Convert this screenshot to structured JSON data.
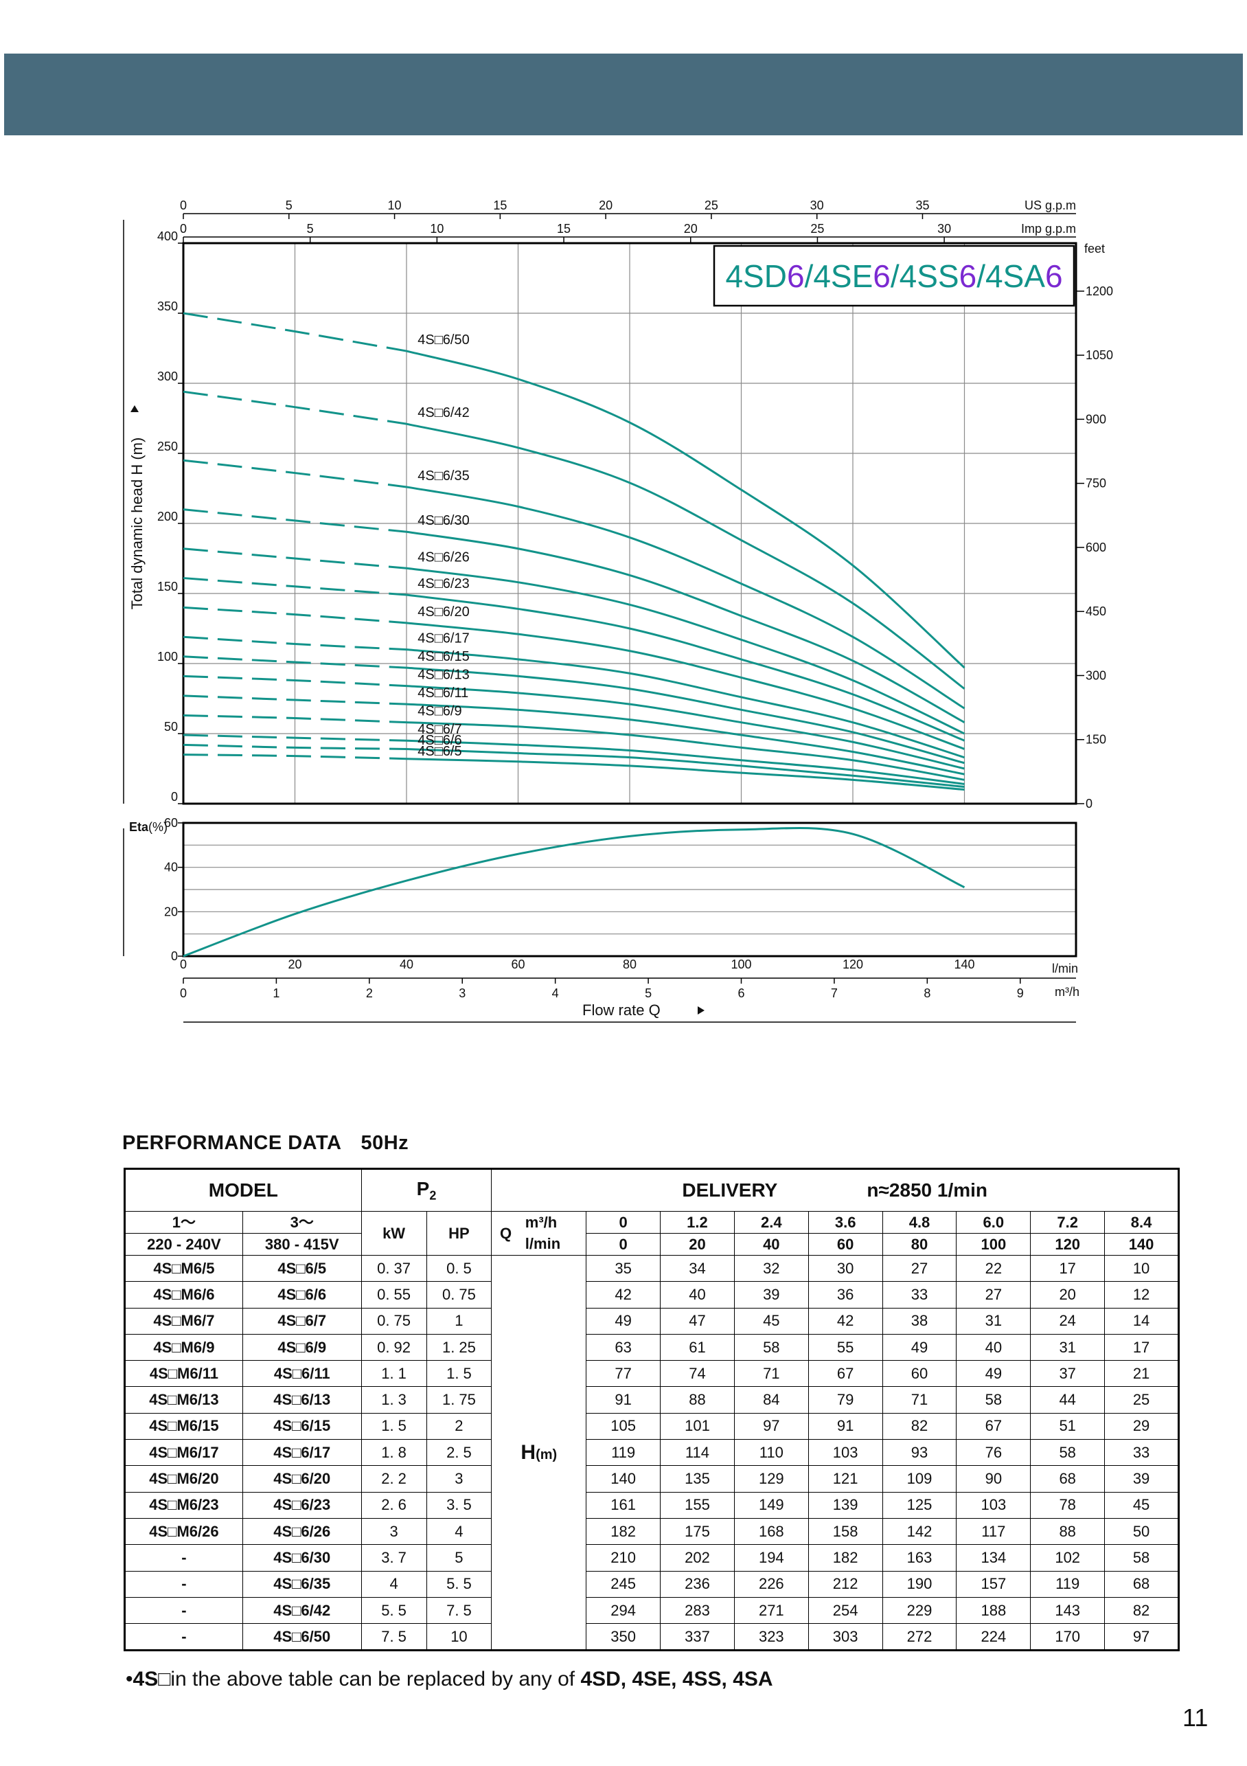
{
  "chart_data": {
    "type": "line",
    "title": "4SD6/4SE6/4SS6/4SA6",
    "title_parts": [
      {
        "t": "4SD",
        "c": "#12938a"
      },
      {
        "t": "6",
        "c": "#7b29d1"
      },
      {
        "t": "/",
        "c": "#12938a"
      },
      {
        "t": "4SE",
        "c": "#12938a"
      },
      {
        "t": "6",
        "c": "#7b29d1"
      },
      {
        "t": "/",
        "c": "#12938a"
      },
      {
        "t": "4SS",
        "c": "#12938a"
      },
      {
        "t": "6",
        "c": "#7b29d1"
      },
      {
        "t": "/",
        "c": "#12938a"
      },
      {
        "t": "4SA",
        "c": "#12938a"
      },
      {
        "t": "6",
        "c": "#7b29d1"
      }
    ],
    "curve_color": "#12938a",
    "ylabel": "Total dynamic head H (m)",
    "y2_label": "feet",
    "x_label": "Flow rate Q",
    "xlim": [
      0,
      160
    ],
    "ylim": [
      0,
      400
    ],
    "y_ticks": [
      0,
      50,
      100,
      150,
      200,
      250,
      300,
      350,
      400
    ],
    "y_feet_ticks": [
      0,
      150,
      300,
      450,
      600,
      750,
      900,
      1050,
      1200
    ],
    "usgpm_label": "US g.p.m",
    "usgpm_ticks": [
      0,
      5,
      10,
      15,
      20,
      25,
      30,
      35
    ],
    "impgpm_label": "Imp g.p.m",
    "impgpm_ticks": [
      0,
      5,
      10,
      15,
      20,
      25,
      30
    ],
    "lmin_label": "l/min",
    "lmin_ticks": [
      0,
      20,
      40,
      60,
      80,
      100,
      120,
      140
    ],
    "m3h_label": "m³/h",
    "m3h_ticks": [
      0,
      1,
      2,
      3,
      4,
      5,
      6,
      7,
      8,
      9
    ],
    "dashed_until_lmin": 40,
    "curve_x": [
      0,
      20,
      40,
      60,
      80,
      100,
      120,
      140
    ],
    "series": [
      {
        "name": "4S□6/50",
        "values": [
          350,
          337,
          323,
          303,
          272,
          224,
          170,
          97
        ]
      },
      {
        "name": "4S□6/42",
        "values": [
          294,
          283,
          271,
          254,
          229,
          188,
          143,
          82
        ]
      },
      {
        "name": "4S□6/35",
        "values": [
          245,
          236,
          226,
          212,
          190,
          157,
          119,
          68
        ]
      },
      {
        "name": "4S□6/30",
        "values": [
          210,
          202,
          194,
          182,
          163,
          134,
          102,
          58
        ]
      },
      {
        "name": "4S□6/26",
        "values": [
          182,
          175,
          168,
          158,
          142,
          117,
          88,
          50
        ]
      },
      {
        "name": "4S□6/23",
        "values": [
          161,
          155,
          149,
          139,
          125,
          103,
          78,
          45
        ]
      },
      {
        "name": "4S□6/20",
        "values": [
          140,
          135,
          129,
          121,
          109,
          90,
          68,
          39
        ]
      },
      {
        "name": "4S□6/17",
        "values": [
          119,
          114,
          110,
          103,
          93,
          76,
          58,
          33
        ]
      },
      {
        "name": "4S□6/15",
        "values": [
          105,
          101,
          97,
          91,
          82,
          67,
          51,
          29
        ]
      },
      {
        "name": "4S□6/13",
        "values": [
          91,
          88,
          84,
          79,
          71,
          58,
          44,
          25
        ]
      },
      {
        "name": "4S□6/11",
        "values": [
          77,
          74,
          71,
          67,
          60,
          49,
          37,
          21
        ]
      },
      {
        "name": "4S□6/9",
        "values": [
          63,
          61,
          58,
          55,
          49,
          40,
          31,
          17
        ]
      },
      {
        "name": "4S□6/7",
        "values": [
          49,
          47,
          45,
          42,
          38,
          31,
          24,
          14
        ]
      },
      {
        "name": "4S□6/6",
        "values": [
          42,
          40,
          39,
          36,
          33,
          27,
          20,
          12
        ]
      },
      {
        "name": "4S□6/5",
        "values": [
          35,
          34,
          32,
          30,
          27,
          22,
          17,
          10
        ]
      }
    ],
    "eta": {
      "label": "Eta",
      "unit": "(%)",
      "ylim": [
        0,
        60
      ],
      "y_ticks": [
        0,
        20,
        40,
        60
      ],
      "x": [
        0,
        20,
        40,
        60,
        80,
        100,
        120,
        140
      ],
      "values": [
        0,
        19,
        34,
        46,
        54,
        57,
        55,
        31
      ]
    }
  },
  "performance": {
    "heading": "PERFORMANCE  DATA",
    "frequency": "50Hz",
    "model_header": "MODEL",
    "p2_header": "P",
    "p2_sub": "2",
    "delivery_header": "DELIVERY",
    "speed": "n≈2850 1/min",
    "col_single": [
      "1～",
      "220 - 240V"
    ],
    "col_three": [
      "3～",
      "380 - 415V"
    ],
    "kw": "kW",
    "hp": "HP",
    "q": "Q",
    "m3h_unit": "m³/h",
    "lmin_unit": "l/min",
    "m3h_values": [
      "0",
      "1.2",
      "2.4",
      "3.6",
      "4.8",
      "6.0",
      "7.2",
      "8.4"
    ],
    "lmin_values": [
      "0",
      "20",
      "40",
      "60",
      "80",
      "100",
      "120",
      "140"
    ],
    "h_label": "H",
    "h_unit": "(m)",
    "rows": [
      {
        "single": "4S□M6/5",
        "three": "4S□6/5",
        "kw": "0. 37",
        "hp": "0. 5",
        "h": [
          "35",
          "34",
          "32",
          "30",
          "27",
          "22",
          "17",
          "10"
        ]
      },
      {
        "single": "4S□M6/6",
        "three": "4S□6/6",
        "kw": "0. 55",
        "hp": "0. 75",
        "h": [
          "42",
          "40",
          "39",
          "36",
          "33",
          "27",
          "20",
          "12"
        ]
      },
      {
        "single": "4S□M6/7",
        "three": "4S□6/7",
        "kw": "0. 75",
        "hp": "1",
        "h": [
          "49",
          "47",
          "45",
          "42",
          "38",
          "31",
          "24",
          "14"
        ]
      },
      {
        "single": "4S□M6/9",
        "three": "4S□6/9",
        "kw": "0. 92",
        "hp": "1. 25",
        "h": [
          "63",
          "61",
          "58",
          "55",
          "49",
          "40",
          "31",
          "17"
        ]
      },
      {
        "single": "4S□M6/11",
        "three": "4S□6/11",
        "kw": "1. 1",
        "hp": "1. 5",
        "h": [
          "77",
          "74",
          "71",
          "67",
          "60",
          "49",
          "37",
          "21"
        ]
      },
      {
        "single": "4S□M6/13",
        "three": "4S□6/13",
        "kw": "1. 3",
        "hp": "1. 75",
        "h": [
          "91",
          "88",
          "84",
          "79",
          "71",
          "58",
          "44",
          "25"
        ]
      },
      {
        "single": "4S□M6/15",
        "three": "4S□6/15",
        "kw": "1. 5",
        "hp": "2",
        "h": [
          "105",
          "101",
          "97",
          "91",
          "82",
          "67",
          "51",
          "29"
        ]
      },
      {
        "single": "4S□M6/17",
        "three": "4S□6/17",
        "kw": "1. 8",
        "hp": "2. 5",
        "h": [
          "119",
          "114",
          "110",
          "103",
          "93",
          "76",
          "58",
          "33"
        ]
      },
      {
        "single": "4S□M6/20",
        "three": "4S□6/20",
        "kw": "2. 2",
        "hp": "3",
        "h": [
          "140",
          "135",
          "129",
          "121",
          "109",
          "90",
          "68",
          "39"
        ]
      },
      {
        "single": "4S□M6/23",
        "three": "4S□6/23",
        "kw": "2. 6",
        "hp": "3. 5",
        "h": [
          "161",
          "155",
          "149",
          "139",
          "125",
          "103",
          "78",
          "45"
        ]
      },
      {
        "single": "4S□M6/26",
        "three": "4S□6/26",
        "kw": "3",
        "hp": "4",
        "h": [
          "182",
          "175",
          "168",
          "158",
          "142",
          "117",
          "88",
          "50"
        ]
      },
      {
        "single": "-",
        "three": "4S□6/30",
        "kw": "3. 7",
        "hp": "5",
        "h": [
          "210",
          "202",
          "194",
          "182",
          "163",
          "134",
          "102",
          "58"
        ]
      },
      {
        "single": "-",
        "three": "4S□6/35",
        "kw": "4",
        "hp": "5. 5",
        "h": [
          "245",
          "236",
          "226",
          "212",
          "190",
          "157",
          "119",
          "68"
        ]
      },
      {
        "single": "-",
        "three": "4S□6/42",
        "kw": "5. 5",
        "hp": "7. 5",
        "h": [
          "294",
          "283",
          "271",
          "254",
          "229",
          "188",
          "143",
          "82"
        ]
      },
      {
        "single": "-",
        "three": "4S□6/50",
        "kw": "7. 5",
        "hp": "10",
        "h": [
          "350",
          "337",
          "323",
          "303",
          "272",
          "224",
          "170",
          "97"
        ]
      }
    ]
  },
  "footnote": {
    "bullet": "•",
    "prefix": "4S",
    "middle": "□in the above table can be replaced by any of ",
    "models": "4SD, 4SE, 4SS, 4SA"
  },
  "page_number": "11"
}
